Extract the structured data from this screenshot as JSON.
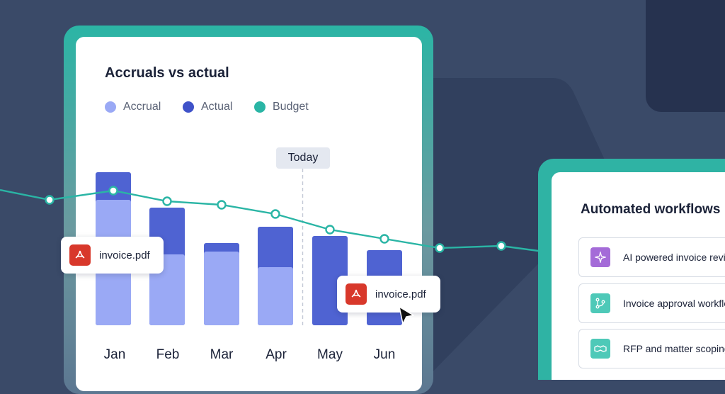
{
  "chart_card": {
    "title": "Accruals vs actual",
    "today_label": "Today",
    "legend": [
      {
        "label": "Accrual",
        "color": "#9aa9f5"
      },
      {
        "label": "Actual",
        "color": "#3f52c9"
      },
      {
        "label": "Budget",
        "color": "#2ab5a5"
      }
    ]
  },
  "chart_data": {
    "type": "bar",
    "categories": [
      "Jan",
      "Feb",
      "Mar",
      "Apr",
      "May",
      "Jun"
    ],
    "series": [
      {
        "name": "Accrual",
        "values": [
          177,
          100,
          104,
          82,
          0,
          0
        ]
      },
      {
        "name": "Actual",
        "values": [
          216,
          166,
          116,
          139,
          126,
          106
        ]
      },
      {
        "name": "Budget",
        "values": [
          190,
          175,
          170,
          157,
          135,
          122
        ]
      }
    ],
    "today_after": "Apr",
    "ylim": [
      0,
      240
    ]
  },
  "files": [
    {
      "name": "invoice.pdf"
    },
    {
      "name": "invoice.pdf"
    }
  ],
  "workflows": {
    "title": "Automated workflows",
    "items": [
      {
        "label": "AI powered invoice review",
        "icon": "sparkle-icon",
        "color": "#a46bd8"
      },
      {
        "label": "Invoice approval workflow",
        "icon": "branch-icon",
        "color": "#4ec9b8"
      },
      {
        "label": "RFP and matter scoping",
        "icon": "handshake-icon",
        "color": "#4ec9b8"
      }
    ]
  }
}
